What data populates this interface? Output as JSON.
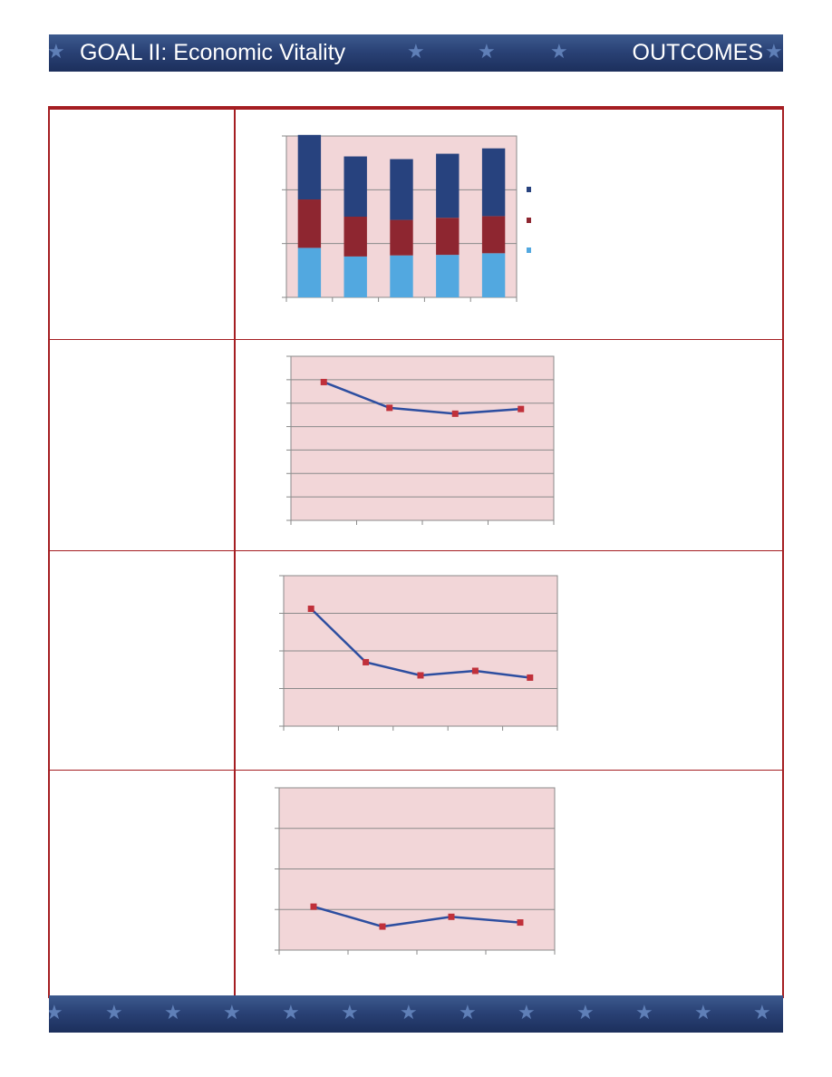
{
  "header": {
    "title": "GOAL II: Economic Vitality",
    "section": "OUTCOMES"
  },
  "colors": {
    "banner": "#2a4276",
    "rule": "#a51e22",
    "plot_background": "#f2d6d8",
    "series_dark_blue": "#27427e",
    "series_dark_red": "#8e2630",
    "series_light_blue": "#52a8e0",
    "line": "#2d4ea0",
    "marker": "#c0303a"
  },
  "icons": [
    "star-icon"
  ],
  "chart_data": [
    {
      "type": "bar",
      "stacked": true,
      "title": "",
      "xlabel": "",
      "ylabel": "",
      "categories": [
        "",
        "",
        "",
        "",
        ""
      ],
      "ylim": [
        0,
        3
      ],
      "grid": true,
      "legend": "right",
      "series": [
        {
          "color": "#52a8e0",
          "values": [
            0.92,
            0.76,
            0.78,
            0.79,
            0.82
          ]
        },
        {
          "color": "#8e2630",
          "values": [
            0.9,
            0.74,
            0.66,
            0.69,
            0.69
          ]
        },
        {
          "color": "#27427e",
          "values": [
            1.2,
            1.12,
            1.13,
            1.19,
            1.26
          ]
        }
      ]
    },
    {
      "type": "line",
      "title": "",
      "xlabel": "",
      "ylabel": "",
      "categories": [
        "",
        "",
        "",
        ""
      ],
      "ylim": [
        0,
        7
      ],
      "grid": true,
      "series": [
        {
          "color": "#2d4ea0",
          "values": [
            5.9,
            4.8,
            4.55,
            4.75
          ]
        }
      ]
    },
    {
      "type": "line",
      "title": "",
      "xlabel": "",
      "ylabel": "",
      "categories": [
        "",
        "",
        "",
        "",
        ""
      ],
      "ylim": [
        0,
        4
      ],
      "grid": true,
      "series": [
        {
          "color": "#2d4ea0",
          "values": [
            3.12,
            1.7,
            1.35,
            1.47,
            1.29
          ]
        }
      ]
    },
    {
      "type": "line",
      "title": "",
      "xlabel": "",
      "ylabel": "",
      "categories": [
        "",
        "",
        "",
        ""
      ],
      "ylim": [
        0,
        4
      ],
      "grid": true,
      "series": [
        {
          "color": "#2d4ea0",
          "values": [
            1.07,
            0.58,
            0.82,
            0.68
          ]
        }
      ]
    }
  ]
}
